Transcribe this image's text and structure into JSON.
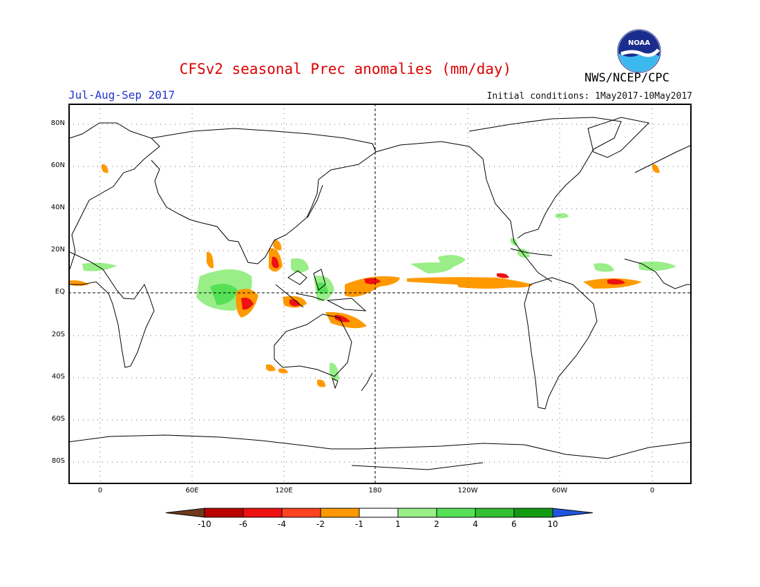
{
  "title": "CFSv2 seasonal Prec anomalies (mm/day)",
  "season": "Jul-Aug-Sep 2017",
  "initial_conditions": "Initial conditions: 1May2017-10May2017",
  "agency": "NWS/NCEP/CPC",
  "logo_text": "NOAA",
  "colors": {
    "title": "#dd0000",
    "season": "#2233cc",
    "neg_very_strong": "#6e3b1e",
    "neg_strong": "#bb0000",
    "neg_mod": "#ee1111",
    "neg_mid": "#ff4422",
    "neg_weak": "#ff9900",
    "zero": "#ffffff",
    "pos_weak": "#99ee88",
    "pos_mid": "#55e055",
    "pos_mod": "#33c033",
    "pos_strong": "#139a13",
    "pos_very_strong": "#2255dd"
  },
  "map": {
    "lat_labels": [
      "80N",
      "60N",
      "40N",
      "20N",
      "EQ",
      "20S",
      "40S",
      "60S",
      "80S"
    ],
    "lon_labels": [
      "0",
      "60E",
      "120E",
      "180",
      "120W",
      "60W",
      "0"
    ]
  },
  "colorbar": {
    "labels": [
      "-10",
      "-6",
      "-4",
      "-2",
      "-1",
      "1",
      "2",
      "4",
      "6",
      "10"
    ]
  }
}
